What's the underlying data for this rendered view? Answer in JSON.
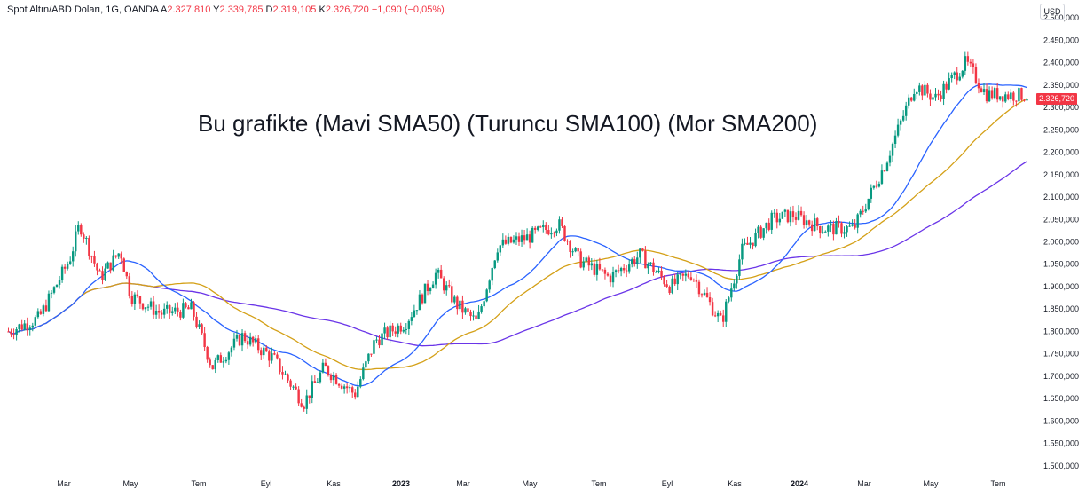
{
  "header": {
    "symbol": "Spot Altın/ABD Doları, 1G, OANDA",
    "open_label": "A",
    "open": "2.327,810",
    "high_label": "Y",
    "high": "2.339,785",
    "low_label": "D",
    "low": "2.319,105",
    "close_label": "K",
    "close": "2.326,720",
    "change": "−1,090 (−0,05%)"
  },
  "overlay_title": "Bu grafikte (Mavi SMA50) (Turuncu SMA100) (Mor SMA200)",
  "currency_label": "USD",
  "last_price_label": "2.326,720",
  "colors": {
    "up": "#089981",
    "down": "#f23645",
    "sma50": "#2962ff",
    "sma100": "#d4a017",
    "sma200": "#6a35e8",
    "price_tag": "#f23645"
  },
  "chart_data": {
    "type": "candlestick",
    "y_axis_ticks": [
      "2.500,000",
      "2.450,000",
      "2.400,000",
      "2.350,000",
      "2.300,000",
      "2.250,000",
      "2.200,000",
      "2.150,000",
      "2.100,000",
      "2.050,000",
      "2.000,000",
      "1.950,000",
      "1.900,000",
      "1.850,000",
      "1.800,000",
      "1.750,000",
      "1.700,000",
      "1.650,000",
      "1.600,000",
      "1.550,000",
      "1.500,000"
    ],
    "x_axis_ticks": [
      "Mar",
      "May",
      "Tem",
      "Eyl",
      "Kas",
      "2023",
      "Mar",
      "May",
      "Tem",
      "Eyl",
      "Kas",
      "2024",
      "Mar",
      "May",
      "Tem"
    ],
    "ylim": [
      1480,
      2520
    ],
    "price_path": [
      {
        "t": 0.0,
        "p": 1800
      },
      {
        "t": 0.03,
        "p": 1830
      },
      {
        "t": 0.06,
        "p": 1960
      },
      {
        "t": 0.07,
        "p": 2040
      },
      {
        "t": 0.09,
        "p": 1920
      },
      {
        "t": 0.11,
        "p": 1980
      },
      {
        "t": 0.12,
        "p": 1880
      },
      {
        "t": 0.15,
        "p": 1840
      },
      {
        "t": 0.18,
        "p": 1850
      },
      {
        "t": 0.2,
        "p": 1720
      },
      {
        "t": 0.23,
        "p": 1790
      },
      {
        "t": 0.26,
        "p": 1740
      },
      {
        "t": 0.29,
        "p": 1640
      },
      {
        "t": 0.31,
        "p": 1720
      },
      {
        "t": 0.34,
        "p": 1660
      },
      {
        "t": 0.36,
        "p": 1780
      },
      {
        "t": 0.39,
        "p": 1820
      },
      {
        "t": 0.42,
        "p": 1930
      },
      {
        "t": 0.44,
        "p": 1860
      },
      {
        "t": 0.46,
        "p": 1820
      },
      {
        "t": 0.48,
        "p": 1990
      },
      {
        "t": 0.51,
        "p": 2010
      },
      {
        "t": 0.54,
        "p": 2040
      },
      {
        "t": 0.56,
        "p": 1960
      },
      {
        "t": 0.59,
        "p": 1920
      },
      {
        "t": 0.62,
        "p": 1970
      },
      {
        "t": 0.65,
        "p": 1900
      },
      {
        "t": 0.67,
        "p": 1930
      },
      {
        "t": 0.7,
        "p": 1820
      },
      {
        "t": 0.72,
        "p": 1980
      },
      {
        "t": 0.75,
        "p": 2050
      },
      {
        "t": 0.77,
        "p": 2060
      },
      {
        "t": 0.8,
        "p": 2030
      },
      {
        "t": 0.83,
        "p": 2030
      },
      {
        "t": 0.86,
        "p": 2170
      },
      {
        "t": 0.89,
        "p": 2350
      },
      {
        "t": 0.91,
        "p": 2320
      },
      {
        "t": 0.94,
        "p": 2400
      },
      {
        "t": 0.96,
        "p": 2330
      },
      {
        "t": 1.0,
        "p": 2327
      }
    ]
  }
}
